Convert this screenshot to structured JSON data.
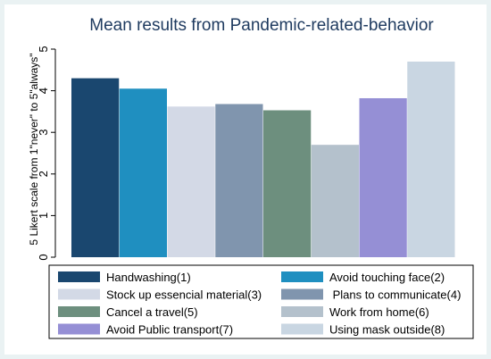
{
  "chart_data": {
    "type": "bar",
    "title": "Mean results from Pandemic-related-behavior",
    "ylabel": "5 Likert scale from 1\"never\" to 5\"always\"",
    "xlabel": "",
    "ylim": [
      0,
      5
    ],
    "yticks": [
      "0",
      "1",
      "2",
      "3",
      "4",
      "5"
    ],
    "grid": false,
    "legend_placement": "bottom",
    "categories": [
      "Handwashing(1)",
      "Avoid touching face(2)",
      "Stock up essencial material(3)",
      "Plans to communicate(4)",
      "Cancel a travel(5)",
      "Work from home(6)",
      "Avoid Public transport(7)",
      "Using mask outside(8)"
    ],
    "values": [
      4.3,
      4.05,
      3.62,
      3.68,
      3.53,
      2.7,
      3.82,
      4.7
    ],
    "colors": [
      "#1a476f",
      "#1f8fc0",
      "#d3d9e6",
      "#8095ae",
      "#6d8f7e",
      "#b4c1cc",
      "#958fd5",
      "#c9d6e2"
    ],
    "legend": [
      "Handwashing(1)",
      "Avoid touching face(2)",
      "Stock up essencial material(3)",
      " Plans to communicate(4)",
      "Cancel a travel(5)",
      "Work from home(6)",
      "Avoid Public transport(7)",
      "Using mask outside(8)"
    ]
  }
}
